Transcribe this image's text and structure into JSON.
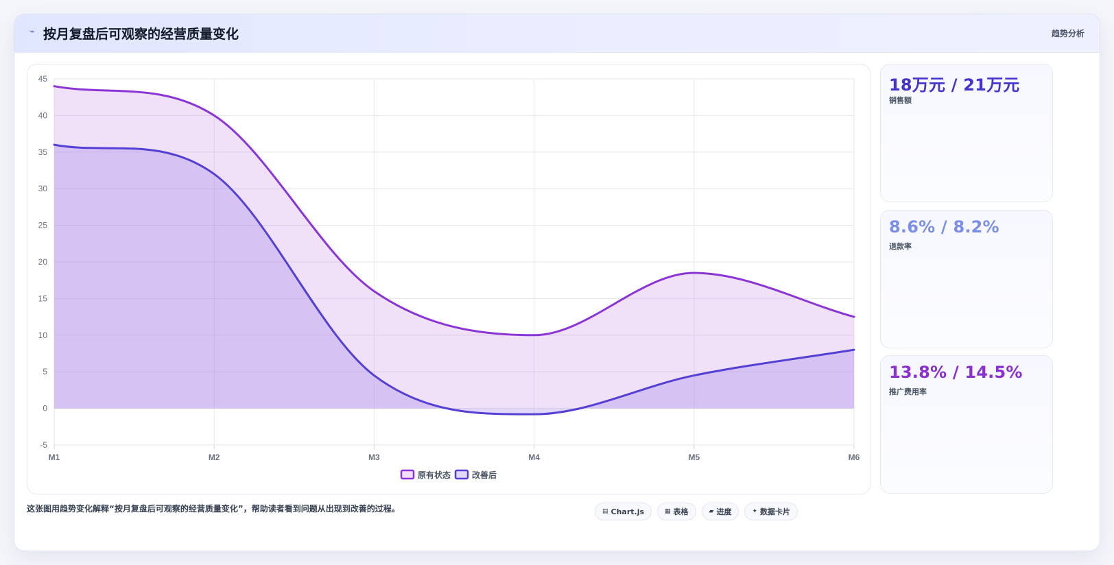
{
  "header": {
    "icon": "sparkline-icon",
    "title": "按月复盘后可观察的经营质量变化",
    "tag": "趋势分析"
  },
  "chart_data": {
    "type": "line",
    "categories": [
      "M1",
      "M2",
      "M3",
      "M4",
      "M5",
      "M6"
    ],
    "ylim": [
      -5,
      45
    ],
    "yticks": [
      45,
      40,
      35,
      30,
      25,
      20,
      15,
      10,
      5,
      0,
      -5
    ],
    "grid": true,
    "legend_position": "bottom",
    "series": [
      {
        "name": "原有状态",
        "values": [
          44,
          40,
          16,
          10,
          18.5,
          12.5
        ],
        "color": "#8b35d6",
        "fill": "rgba(185,120,225,0.22)"
      },
      {
        "name": "改善后",
        "values": [
          36,
          32,
          4.5,
          -0.8,
          4.5,
          8
        ],
        "color": "#5540d6",
        "fill": "rgba(150,120,230,0.28)"
      }
    ]
  },
  "stats": [
    {
      "value": "18万元 / 21万元",
      "label": "销售额",
      "color": "#4433cc"
    },
    {
      "value": "8.6% / 8.2%",
      "label": "退款率",
      "color": "#7b8fe6"
    },
    {
      "value": "13.8% / 14.5%",
      "label": "推广费用率",
      "color": "#8a2fd0"
    }
  ],
  "footer": {
    "description": "这张图用趋势变化解释“按月复盘后可观察的经营质量变化”，帮助读者看到问题从出现到改善的过程。",
    "chips": [
      {
        "icon": "chart-icon",
        "glyph": "▤",
        "label": "Chart.js"
      },
      {
        "icon": "table-icon",
        "glyph": "▦",
        "label": "表格"
      },
      {
        "icon": "progress-icon",
        "glyph": "▰",
        "label": "进度"
      },
      {
        "icon": "card-icon",
        "glyph": "✦",
        "label": "数据卡片"
      }
    ]
  }
}
